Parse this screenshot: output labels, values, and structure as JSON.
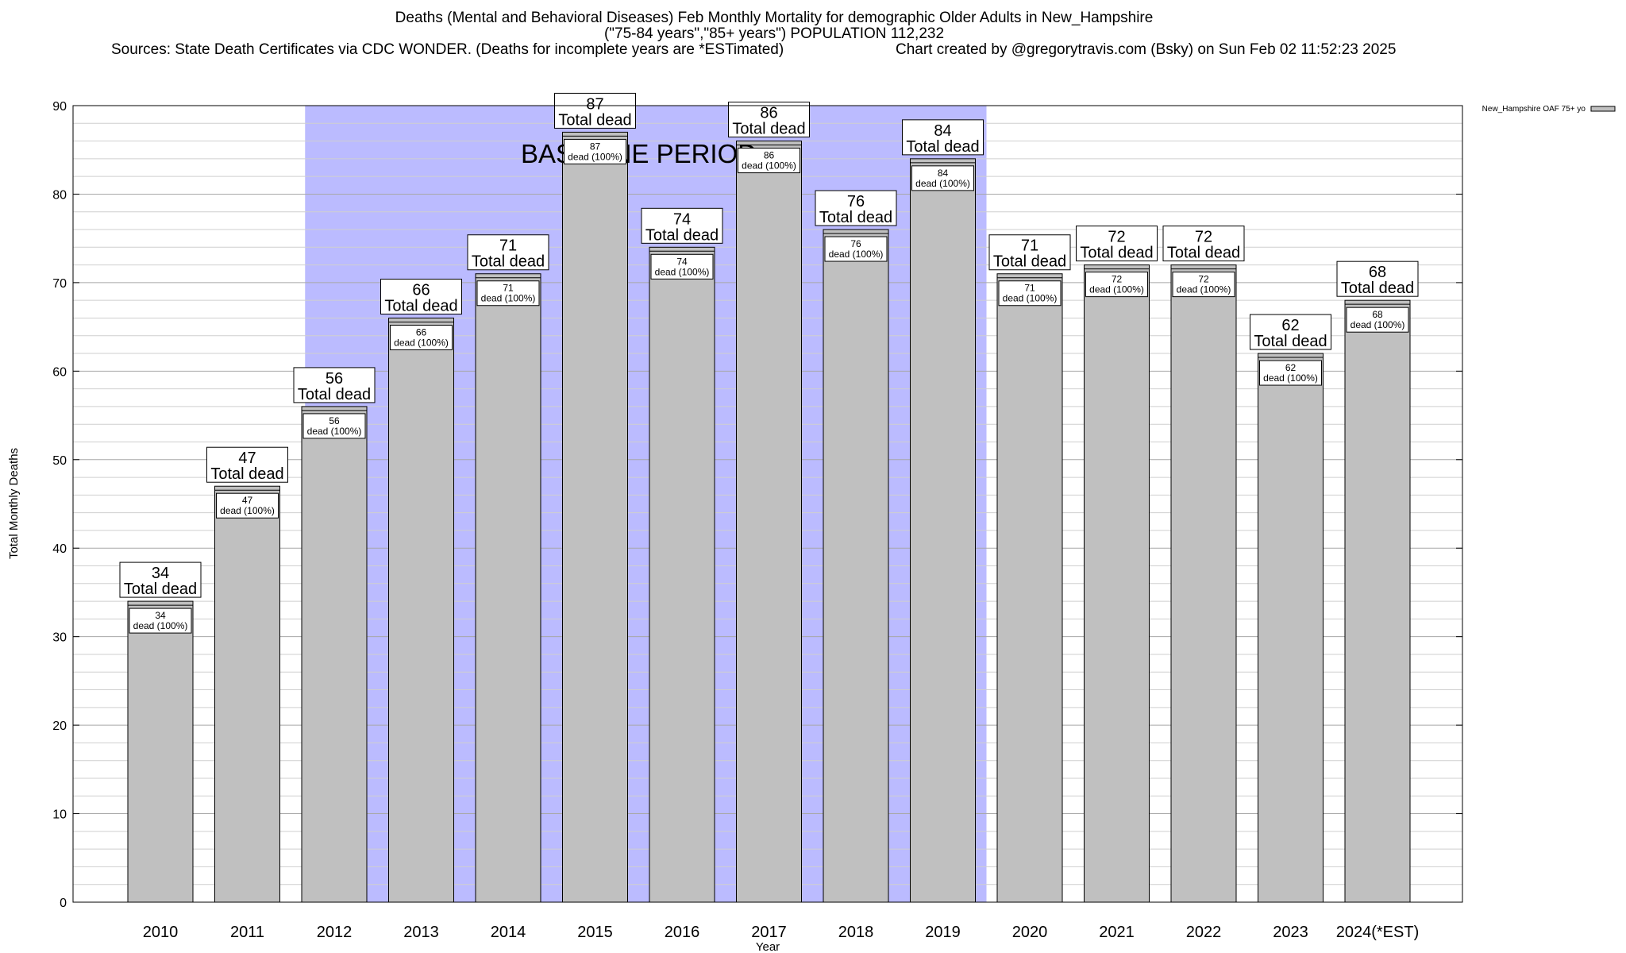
{
  "header": {
    "title_line1": "Deaths (Mental and Behavioral Diseases) Feb Monthly Mortality for demographic Older Adults in New_Hampshire",
    "title_line2": "(\"75-84 years\",\"85+ years\") POPULATION 112,232",
    "sources": "Sources: State Death Certificates via CDC WONDER. (Deaths for incomplete years are *ESTimated)",
    "credit": "Chart created by @gregorytravis.com (Bsky) on Sun Feb 02 11:52:23 2025"
  },
  "chart_data": {
    "type": "bar",
    "xlabel": "Year",
    "ylabel": "Total Monthly Deaths",
    "ylim": [
      0,
      90
    ],
    "y_major_ticks": [
      0,
      10,
      20,
      30,
      40,
      50,
      60,
      70,
      80,
      90
    ],
    "y_minor_step": 2,
    "grid": true,
    "legend_position": "top-right",
    "categories": [
      "2010",
      "2011",
      "2012",
      "2013",
      "2014",
      "2015",
      "2016",
      "2017",
      "2018",
      "2019",
      "2020",
      "2021",
      "2022",
      "2023",
      "2024(*EST)"
    ],
    "series": [
      {
        "name": "New_Hampshire OAF 75+ yo",
        "color": "#c0c0c0",
        "values": [
          34,
          47,
          56,
          66,
          71,
          87,
          74,
          86,
          76,
          84,
          71,
          72,
          72,
          62,
          68
        ]
      }
    ],
    "top_label_suffix": "Total dead",
    "inner_label_suffix": "dead (100%)",
    "baseline_period": {
      "label": "BASELINE PERIOD",
      "start": "2012",
      "end": "2019",
      "color": "#bbbbff"
    }
  }
}
